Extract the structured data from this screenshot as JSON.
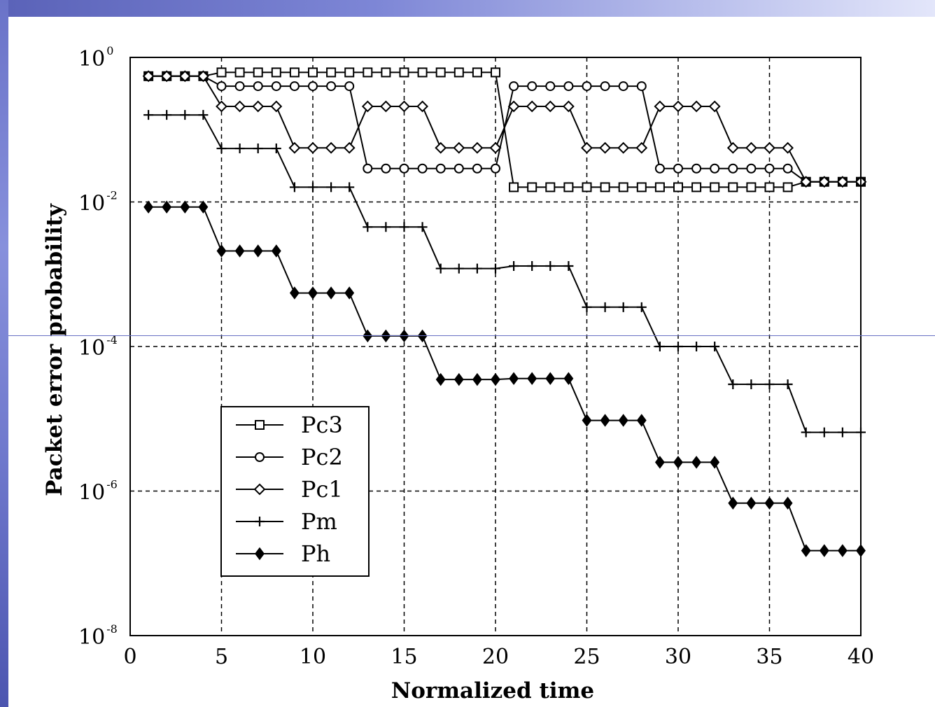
{
  "chart_data": {
    "type": "line",
    "title": "",
    "xlabel": "Normalized time",
    "ylabel": "Packet error probability",
    "xlim": [
      0,
      40
    ],
    "ylim": [
      1e-08,
      1
    ],
    "yscale": "log",
    "grid": true,
    "legend_position": "lower-left",
    "x_ticks": [
      0,
      5,
      10,
      15,
      20,
      25,
      30,
      35,
      40
    ],
    "y_ticks": [
      {
        "value": 1,
        "base": "10",
        "exp": "0"
      },
      {
        "value": 0.01,
        "base": "10",
        "exp": "-2"
      },
      {
        "value": 0.0001,
        "base": "10",
        "exp": "-4"
      },
      {
        "value": 1e-06,
        "base": "10",
        "exp": "-6"
      },
      {
        "value": 1e-08,
        "base": "10",
        "exp": "-8"
      }
    ],
    "series": [
      {
        "name": "Pc3",
        "marker": "square",
        "points": [
          [
            1,
            0.55
          ],
          [
            2,
            0.55
          ],
          [
            3,
            0.55
          ],
          [
            4,
            0.55
          ],
          [
            5,
            0.62
          ],
          [
            6,
            0.62
          ],
          [
            7,
            0.62
          ],
          [
            8,
            0.62
          ],
          [
            9,
            0.62
          ],
          [
            10,
            0.62
          ],
          [
            11,
            0.62
          ],
          [
            12,
            0.62
          ],
          [
            13,
            0.62
          ],
          [
            14,
            0.62
          ],
          [
            15,
            0.62
          ],
          [
            16,
            0.62
          ],
          [
            17,
            0.62
          ],
          [
            18,
            0.62
          ],
          [
            19,
            0.62
          ],
          [
            20,
            0.62
          ],
          [
            21,
            0.016
          ],
          [
            22,
            0.016
          ],
          [
            23,
            0.016
          ],
          [
            24,
            0.016
          ],
          [
            25,
            0.016
          ],
          [
            26,
            0.016
          ],
          [
            27,
            0.016
          ],
          [
            28,
            0.016
          ],
          [
            29,
            0.016
          ],
          [
            30,
            0.016
          ],
          [
            31,
            0.016
          ],
          [
            32,
            0.016
          ],
          [
            33,
            0.016
          ],
          [
            34,
            0.016
          ],
          [
            35,
            0.016
          ],
          [
            36,
            0.016
          ],
          [
            37,
            0.019
          ],
          [
            38,
            0.019
          ],
          [
            39,
            0.019
          ],
          [
            40,
            0.019
          ]
        ]
      },
      {
        "name": "Pc2",
        "marker": "circle",
        "points": [
          [
            1,
            0.55
          ],
          [
            2,
            0.55
          ],
          [
            3,
            0.55
          ],
          [
            4,
            0.55
          ],
          [
            5,
            0.4
          ],
          [
            6,
            0.4
          ],
          [
            7,
            0.4
          ],
          [
            8,
            0.4
          ],
          [
            9,
            0.4
          ],
          [
            10,
            0.4
          ],
          [
            11,
            0.4
          ],
          [
            12,
            0.4
          ],
          [
            13,
            0.029
          ],
          [
            14,
            0.029
          ],
          [
            15,
            0.029
          ],
          [
            16,
            0.029
          ],
          [
            17,
            0.029
          ],
          [
            18,
            0.029
          ],
          [
            19,
            0.029
          ],
          [
            20,
            0.029
          ],
          [
            21,
            0.4
          ],
          [
            22,
            0.4
          ],
          [
            23,
            0.4
          ],
          [
            24,
            0.4
          ],
          [
            25,
            0.4
          ],
          [
            26,
            0.4
          ],
          [
            27,
            0.4
          ],
          [
            28,
            0.4
          ],
          [
            29,
            0.029
          ],
          [
            30,
            0.029
          ],
          [
            31,
            0.029
          ],
          [
            32,
            0.029
          ],
          [
            33,
            0.029
          ],
          [
            34,
            0.029
          ],
          [
            35,
            0.029
          ],
          [
            36,
            0.029
          ],
          [
            37,
            0.019
          ],
          [
            38,
            0.019
          ],
          [
            39,
            0.019
          ],
          [
            40,
            0.019
          ]
        ]
      },
      {
        "name": "Pc1",
        "marker": "diamond",
        "points": [
          [
            1,
            0.55
          ],
          [
            2,
            0.55
          ],
          [
            3,
            0.55
          ],
          [
            4,
            0.55
          ],
          [
            5,
            0.21
          ],
          [
            6,
            0.21
          ],
          [
            7,
            0.21
          ],
          [
            8,
            0.21
          ],
          [
            9,
            0.056
          ],
          [
            10,
            0.056
          ],
          [
            11,
            0.056
          ],
          [
            12,
            0.056
          ],
          [
            13,
            0.21
          ],
          [
            14,
            0.21
          ],
          [
            15,
            0.21
          ],
          [
            16,
            0.21
          ],
          [
            17,
            0.056
          ],
          [
            18,
            0.056
          ],
          [
            19,
            0.056
          ],
          [
            20,
            0.056
          ],
          [
            21,
            0.21
          ],
          [
            22,
            0.21
          ],
          [
            23,
            0.21
          ],
          [
            24,
            0.21
          ],
          [
            25,
            0.056
          ],
          [
            26,
            0.056
          ],
          [
            27,
            0.056
          ],
          [
            28,
            0.056
          ],
          [
            29,
            0.21
          ],
          [
            30,
            0.21
          ],
          [
            31,
            0.21
          ],
          [
            32,
            0.21
          ],
          [
            33,
            0.056
          ],
          [
            34,
            0.056
          ],
          [
            35,
            0.056
          ],
          [
            36,
            0.056
          ],
          [
            37,
            0.019
          ],
          [
            38,
            0.019
          ],
          [
            39,
            0.019
          ],
          [
            40,
            0.019
          ]
        ]
      },
      {
        "name": "Pm",
        "marker": "plus",
        "points": [
          [
            1,
            0.16
          ],
          [
            2,
            0.16
          ],
          [
            3,
            0.16
          ],
          [
            4,
            0.16
          ],
          [
            5,
            0.055
          ],
          [
            6,
            0.055
          ],
          [
            7,
            0.055
          ],
          [
            8,
            0.055
          ],
          [
            9,
            0.016
          ],
          [
            10,
            0.016
          ],
          [
            11,
            0.016
          ],
          [
            12,
            0.016
          ],
          [
            13,
            0.0045
          ],
          [
            14,
            0.0045
          ],
          [
            15,
            0.0045
          ],
          [
            16,
            0.0045
          ],
          [
            17,
            0.0012
          ],
          [
            18,
            0.0012
          ],
          [
            19,
            0.0012
          ],
          [
            20,
            0.0012
          ],
          [
            21,
            0.0013
          ],
          [
            22,
            0.0013
          ],
          [
            23,
            0.0013
          ],
          [
            24,
            0.0013
          ],
          [
            25,
            0.00035
          ],
          [
            26,
            0.00035
          ],
          [
            27,
            0.00035
          ],
          [
            28,
            0.00035
          ],
          [
            29,
            0.0001
          ],
          [
            30,
            0.0001
          ],
          [
            31,
            0.0001
          ],
          [
            32,
            0.0001
          ],
          [
            33,
            3e-05
          ],
          [
            34,
            3e-05
          ],
          [
            35,
            3e-05
          ],
          [
            36,
            3e-05
          ],
          [
            37,
            6.5e-06
          ],
          [
            38,
            6.5e-06
          ],
          [
            39,
            6.5e-06
          ],
          [
            40,
            6.5e-06
          ]
        ]
      },
      {
        "name": "Ph",
        "marker": "filled-diamond",
        "points": [
          [
            1,
            0.0085
          ],
          [
            2,
            0.0085
          ],
          [
            3,
            0.0085
          ],
          [
            4,
            0.0085
          ],
          [
            5,
            0.0021
          ],
          [
            6,
            0.0021
          ],
          [
            7,
            0.0021
          ],
          [
            8,
            0.0021
          ],
          [
            9,
            0.00055
          ],
          [
            10,
            0.00055
          ],
          [
            11,
            0.00055
          ],
          [
            12,
            0.00055
          ],
          [
            13,
            0.00014
          ],
          [
            14,
            0.00014
          ],
          [
            15,
            0.00014
          ],
          [
            16,
            0.00014
          ],
          [
            17,
            3.5e-05
          ],
          [
            18,
            3.5e-05
          ],
          [
            19,
            3.5e-05
          ],
          [
            20,
            3.5e-05
          ],
          [
            21,
            3.6e-05
          ],
          [
            22,
            3.6e-05
          ],
          [
            23,
            3.6e-05
          ],
          [
            24,
            3.6e-05
          ],
          [
            25,
            9.5e-06
          ],
          [
            26,
            9.5e-06
          ],
          [
            27,
            9.5e-06
          ],
          [
            28,
            9.5e-06
          ],
          [
            29,
            2.5e-06
          ],
          [
            30,
            2.5e-06
          ],
          [
            31,
            2.5e-06
          ],
          [
            32,
            2.5e-06
          ],
          [
            33,
            6.8e-07
          ],
          [
            34,
            6.8e-07
          ],
          [
            35,
            6.8e-07
          ],
          [
            36,
            6.8e-07
          ],
          [
            37,
            1.5e-07
          ],
          [
            38,
            1.5e-07
          ],
          [
            39,
            1.5e-07
          ],
          [
            40,
            1.5e-07
          ]
        ]
      }
    ]
  }
}
